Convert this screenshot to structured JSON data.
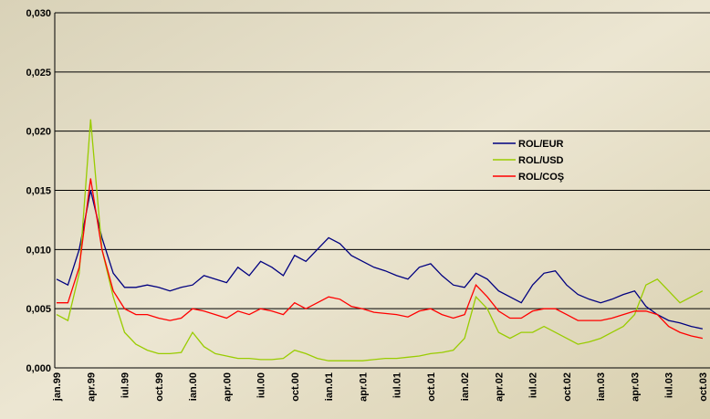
{
  "chart_data": {
    "type": "line",
    "categories": [
      "jan.99",
      null,
      null,
      "apr.99",
      null,
      null,
      "iul.99",
      null,
      null,
      "oct.99",
      null,
      null,
      "ian.00",
      null,
      null,
      "apr.00",
      null,
      null,
      "iul.00",
      null,
      null,
      "oct.00",
      null,
      null,
      "ian.01",
      null,
      null,
      "apr.01",
      null,
      null,
      "iul.01",
      null,
      null,
      "oct.01",
      null,
      null,
      "ian.02",
      null,
      null,
      "apr.02",
      null,
      null,
      "iul.02",
      null,
      null,
      "oct.02",
      null,
      null,
      "ian.03",
      null,
      null,
      "apr.03",
      null,
      null,
      "iul.03",
      null,
      null,
      "oct.03"
    ],
    "series": [
      {
        "name": "ROL/EUR",
        "color": "#000080",
        "values": [
          0.0075,
          0.007,
          0.01,
          0.015,
          0.011,
          0.008,
          0.0068,
          0.0068,
          0.007,
          0.0068,
          0.0065,
          0.0068,
          0.007,
          0.0078,
          0.0075,
          0.0072,
          0.0085,
          0.0078,
          0.009,
          0.0085,
          0.0078,
          0.0095,
          0.009,
          0.01,
          0.011,
          0.0105,
          0.0095,
          0.009,
          0.0085,
          0.0082,
          0.0078,
          0.0075,
          0.0085,
          0.0088,
          0.0078,
          0.007,
          0.0068,
          0.008,
          0.0075,
          0.0065,
          0.006,
          0.0055,
          0.007,
          0.008,
          0.0082,
          0.007,
          0.0062,
          0.0058,
          0.0055,
          0.0058,
          0.0062,
          0.0065,
          0.0052,
          0.0045,
          0.004,
          0.0038,
          0.0035,
          0.0033
        ]
      },
      {
        "name": "ROL/USD",
        "color": "#99cc00",
        "values": [
          0.0045,
          0.004,
          0.008,
          0.021,
          0.01,
          0.006,
          0.003,
          0.002,
          0.0015,
          0.0012,
          0.0012,
          0.0013,
          0.003,
          0.0018,
          0.0012,
          0.001,
          0.0008,
          0.0008,
          0.0007,
          0.0007,
          0.0008,
          0.0015,
          0.0012,
          0.0008,
          0.0006,
          0.0006,
          0.0006,
          0.0006,
          0.0007,
          0.0008,
          0.0008,
          0.0009,
          0.001,
          0.0012,
          0.0013,
          0.0015,
          0.0025,
          0.006,
          0.005,
          0.003,
          0.0025,
          0.003,
          0.003,
          0.0035,
          0.003,
          0.0025,
          0.002,
          0.0022,
          0.0025,
          0.003,
          0.0035,
          0.0045,
          0.007,
          0.0075,
          0.0065,
          0.0055,
          0.006,
          0.0065
        ]
      },
      {
        "name": "ROL/COŞ",
        "color": "#ff0000",
        "values": [
          0.0055,
          0.0055,
          0.0085,
          0.016,
          0.01,
          0.0065,
          0.005,
          0.0045,
          0.0045,
          0.0042,
          0.004,
          0.0042,
          0.005,
          0.0048,
          0.0045,
          0.0042,
          0.0048,
          0.0045,
          0.005,
          0.0048,
          0.0045,
          0.0055,
          0.005,
          0.0055,
          0.006,
          0.0058,
          0.0052,
          0.005,
          0.0047,
          0.0046,
          0.0045,
          0.0043,
          0.0048,
          0.005,
          0.0045,
          0.0042,
          0.0045,
          0.007,
          0.006,
          0.0048,
          0.0042,
          0.0042,
          0.0048,
          0.005,
          0.005,
          0.0045,
          0.004,
          0.004,
          0.004,
          0.0042,
          0.0045,
          0.0048,
          0.0048,
          0.0045,
          0.0035,
          0.003,
          0.0027,
          0.0025
        ]
      }
    ],
    "ylim": [
      0,
      0.03
    ],
    "yticks": [
      {
        "value": 0,
        "label": "0,000"
      },
      {
        "value": 0.005,
        "label": "0,005"
      },
      {
        "value": 0.01,
        "label": "0,010"
      },
      {
        "value": 0.015,
        "label": "0,015"
      },
      {
        "value": 0.02,
        "label": "0,020"
      },
      {
        "value": 0.025,
        "label": "0,025"
      },
      {
        "value": 0.03,
        "label": "0,030"
      }
    ],
    "grid": true,
    "legend": "right"
  }
}
